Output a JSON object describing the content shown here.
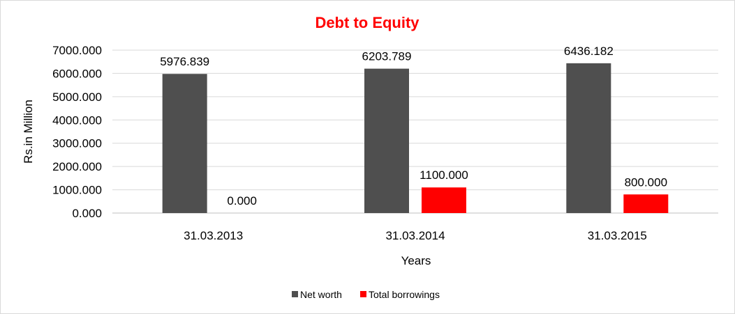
{
  "chart_data": {
    "type": "bar",
    "title": "Debt to Equity",
    "xlabel": "Years",
    "ylabel": "Rs.in Million",
    "categories": [
      "31.03.2013",
      "31.03.2014",
      "31.03.2015"
    ],
    "series": [
      {
        "name": "Net worth",
        "color": "#4f4f4f",
        "values": [
          5976.839,
          6203.789,
          6436.182
        ],
        "labels": [
          "5976.839",
          "6203.789",
          "6436.182"
        ]
      },
      {
        "name": "Total borrowings",
        "color": "#ff0000",
        "values": [
          0,
          1100,
          800
        ],
        "labels": [
          "0.000",
          "1100.000",
          "800.000"
        ]
      }
    ],
    "ylim": [
      0,
      7000
    ],
    "yticks": [
      "0.000",
      "1000.000",
      "2000.000",
      "3000.000",
      "4000.000",
      "5000.000",
      "6000.000",
      "7000.000"
    ],
    "grid": true,
    "legend_position": "bottom",
    "title_color": "#ff0000"
  }
}
